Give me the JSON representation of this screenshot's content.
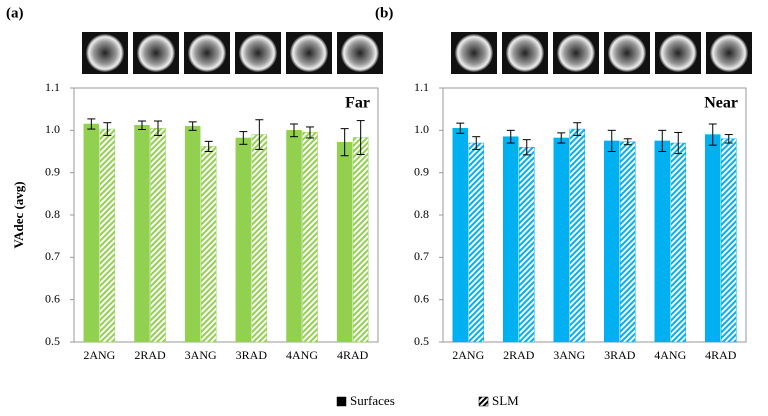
{
  "chart_data": [
    {
      "type": "bar",
      "panel_label": "(a)",
      "annotation": "Far",
      "ylabel": "VAdec (avg)",
      "categories": [
        "2ANG",
        "2RAD",
        "3ANG",
        "3RAD",
        "4ANG",
        "4RAD"
      ],
      "series": [
        {
          "name": "Surfaces",
          "color": "#92d050",
          "hatch": false,
          "values": [
            1.015,
            1.012,
            1.01,
            0.982,
            1.0,
            0.972
          ],
          "errors": [
            0.012,
            0.01,
            0.01,
            0.015,
            0.015,
            0.032
          ]
        },
        {
          "name": "SLM",
          "color": "#92d050",
          "hatch": true,
          "values": [
            1.003,
            1.005,
            0.962,
            0.99,
            0.995,
            0.983
          ],
          "errors": [
            0.015,
            0.017,
            0.012,
            0.035,
            0.013,
            0.04
          ]
        }
      ],
      "ylim": [
        0.5,
        1.1
      ],
      "yticks": [
        0.5,
        0.6,
        0.7,
        0.8,
        0.9,
        {
          "value": 1,
          "label": "1.0"
        },
        1.1
      ],
      "grid": false
    },
    {
      "type": "bar",
      "panel_label": "(b)",
      "annotation": "Near",
      "categories": [
        "2ANG",
        "2RAD",
        "3ANG",
        "3RAD",
        "4ANG",
        "4RAD"
      ],
      "series": [
        {
          "color": "#00b0f0",
          "hatch": false,
          "values": [
            1.005,
            0.985,
            0.982,
            0.975,
            0.975,
            0.99
          ],
          "errors": [
            0.012,
            0.015,
            0.012,
            0.025,
            0.025,
            0.025
          ]
        },
        {
          "color": "#00b0f0",
          "hatch": true,
          "values": [
            0.97,
            0.96,
            1.003,
            0.973,
            0.97,
            0.98
          ],
          "errors": [
            0.015,
            0.018,
            0.015,
            0.007,
            0.025,
            0.01
          ]
        }
      ],
      "ylim": [
        0.5,
        1.1
      ],
      "yticks": [
        0.5,
        0.6,
        0.7,
        0.8,
        0.9,
        {
          "value": 1,
          "label": "1.0"
        },
        1.1
      ],
      "grid": false
    }
  ]
}
